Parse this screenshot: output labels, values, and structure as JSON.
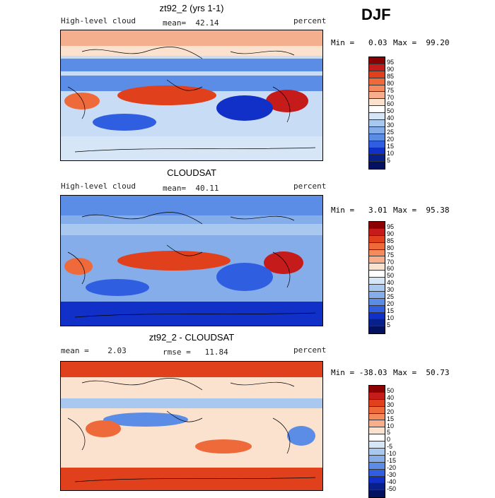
{
  "header": {
    "season": "DJF"
  },
  "chart_data": [
    {
      "type": "heatmap",
      "title": "zt92_2 (yrs 1-1)",
      "variable": "High-level cloud",
      "units": "percent",
      "mean_text": "mean=  42.14",
      "min_text": "Min =   0.03",
      "max_text": "Max =  99.20",
      "colorbar": {
        "levels": [
          "95",
          "90",
          "85",
          "80",
          "75",
          "70",
          "60",
          "50",
          "40",
          "30",
          "25",
          "20",
          "15",
          "10",
          "5"
        ],
        "colors": [
          "#8b0000",
          "#c51b1b",
          "#e0401c",
          "#ef6a3a",
          "#f58a5c",
          "#f7ae8c",
          "#fbe2cf",
          "#ffffff",
          "#d6e6f7",
          "#a9c8ef",
          "#84adea",
          "#5b8ce6",
          "#2f5fe0",
          "#1030c8",
          "#08208c",
          "#041060"
        ]
      }
    },
    {
      "type": "heatmap",
      "title": "CLOUDSAT",
      "variable": "High-level cloud",
      "units": "percent",
      "mean_text": "mean=  40.11",
      "min_text": "Min =   3.01",
      "max_text": "Max =  95.38",
      "colorbar": {
        "levels": [
          "95",
          "90",
          "85",
          "80",
          "75",
          "70",
          "60",
          "50",
          "40",
          "30",
          "25",
          "20",
          "15",
          "10",
          "5"
        ],
        "colors": [
          "#8b0000",
          "#c51b1b",
          "#e0401c",
          "#ef6a3a",
          "#f58a5c",
          "#f7ae8c",
          "#fbe2cf",
          "#ffffff",
          "#d6e6f7",
          "#a9c8ef",
          "#84adea",
          "#5b8ce6",
          "#2f5fe0",
          "#1030c8",
          "#08208c",
          "#041060"
        ]
      }
    },
    {
      "type": "heatmap",
      "title": "zt92_2 - CLOUDSAT",
      "variable": "",
      "units": "percent",
      "mean_text": "mean =    2.03",
      "rmse_text": "rmse =   11.84",
      "min_text": "Min = -38.03",
      "max_text": "Max =  50.73",
      "colorbar": {
        "levels": [
          "50",
          "40",
          "30",
          "20",
          "15",
          "10",
          "5",
          "0",
          "-5",
          "-10",
          "-15",
          "-20",
          "-30",
          "-40",
          "-50"
        ],
        "colors": [
          "#8b0000",
          "#c51b1b",
          "#e0401c",
          "#ef6a3a",
          "#f58a5c",
          "#f7ae8c",
          "#fbe2cf",
          "#ffffff",
          "#d6e6f7",
          "#a9c8ef",
          "#84adea",
          "#5b8ce6",
          "#2f5fe0",
          "#1030c8",
          "#08208c",
          "#041060"
        ]
      }
    }
  ]
}
